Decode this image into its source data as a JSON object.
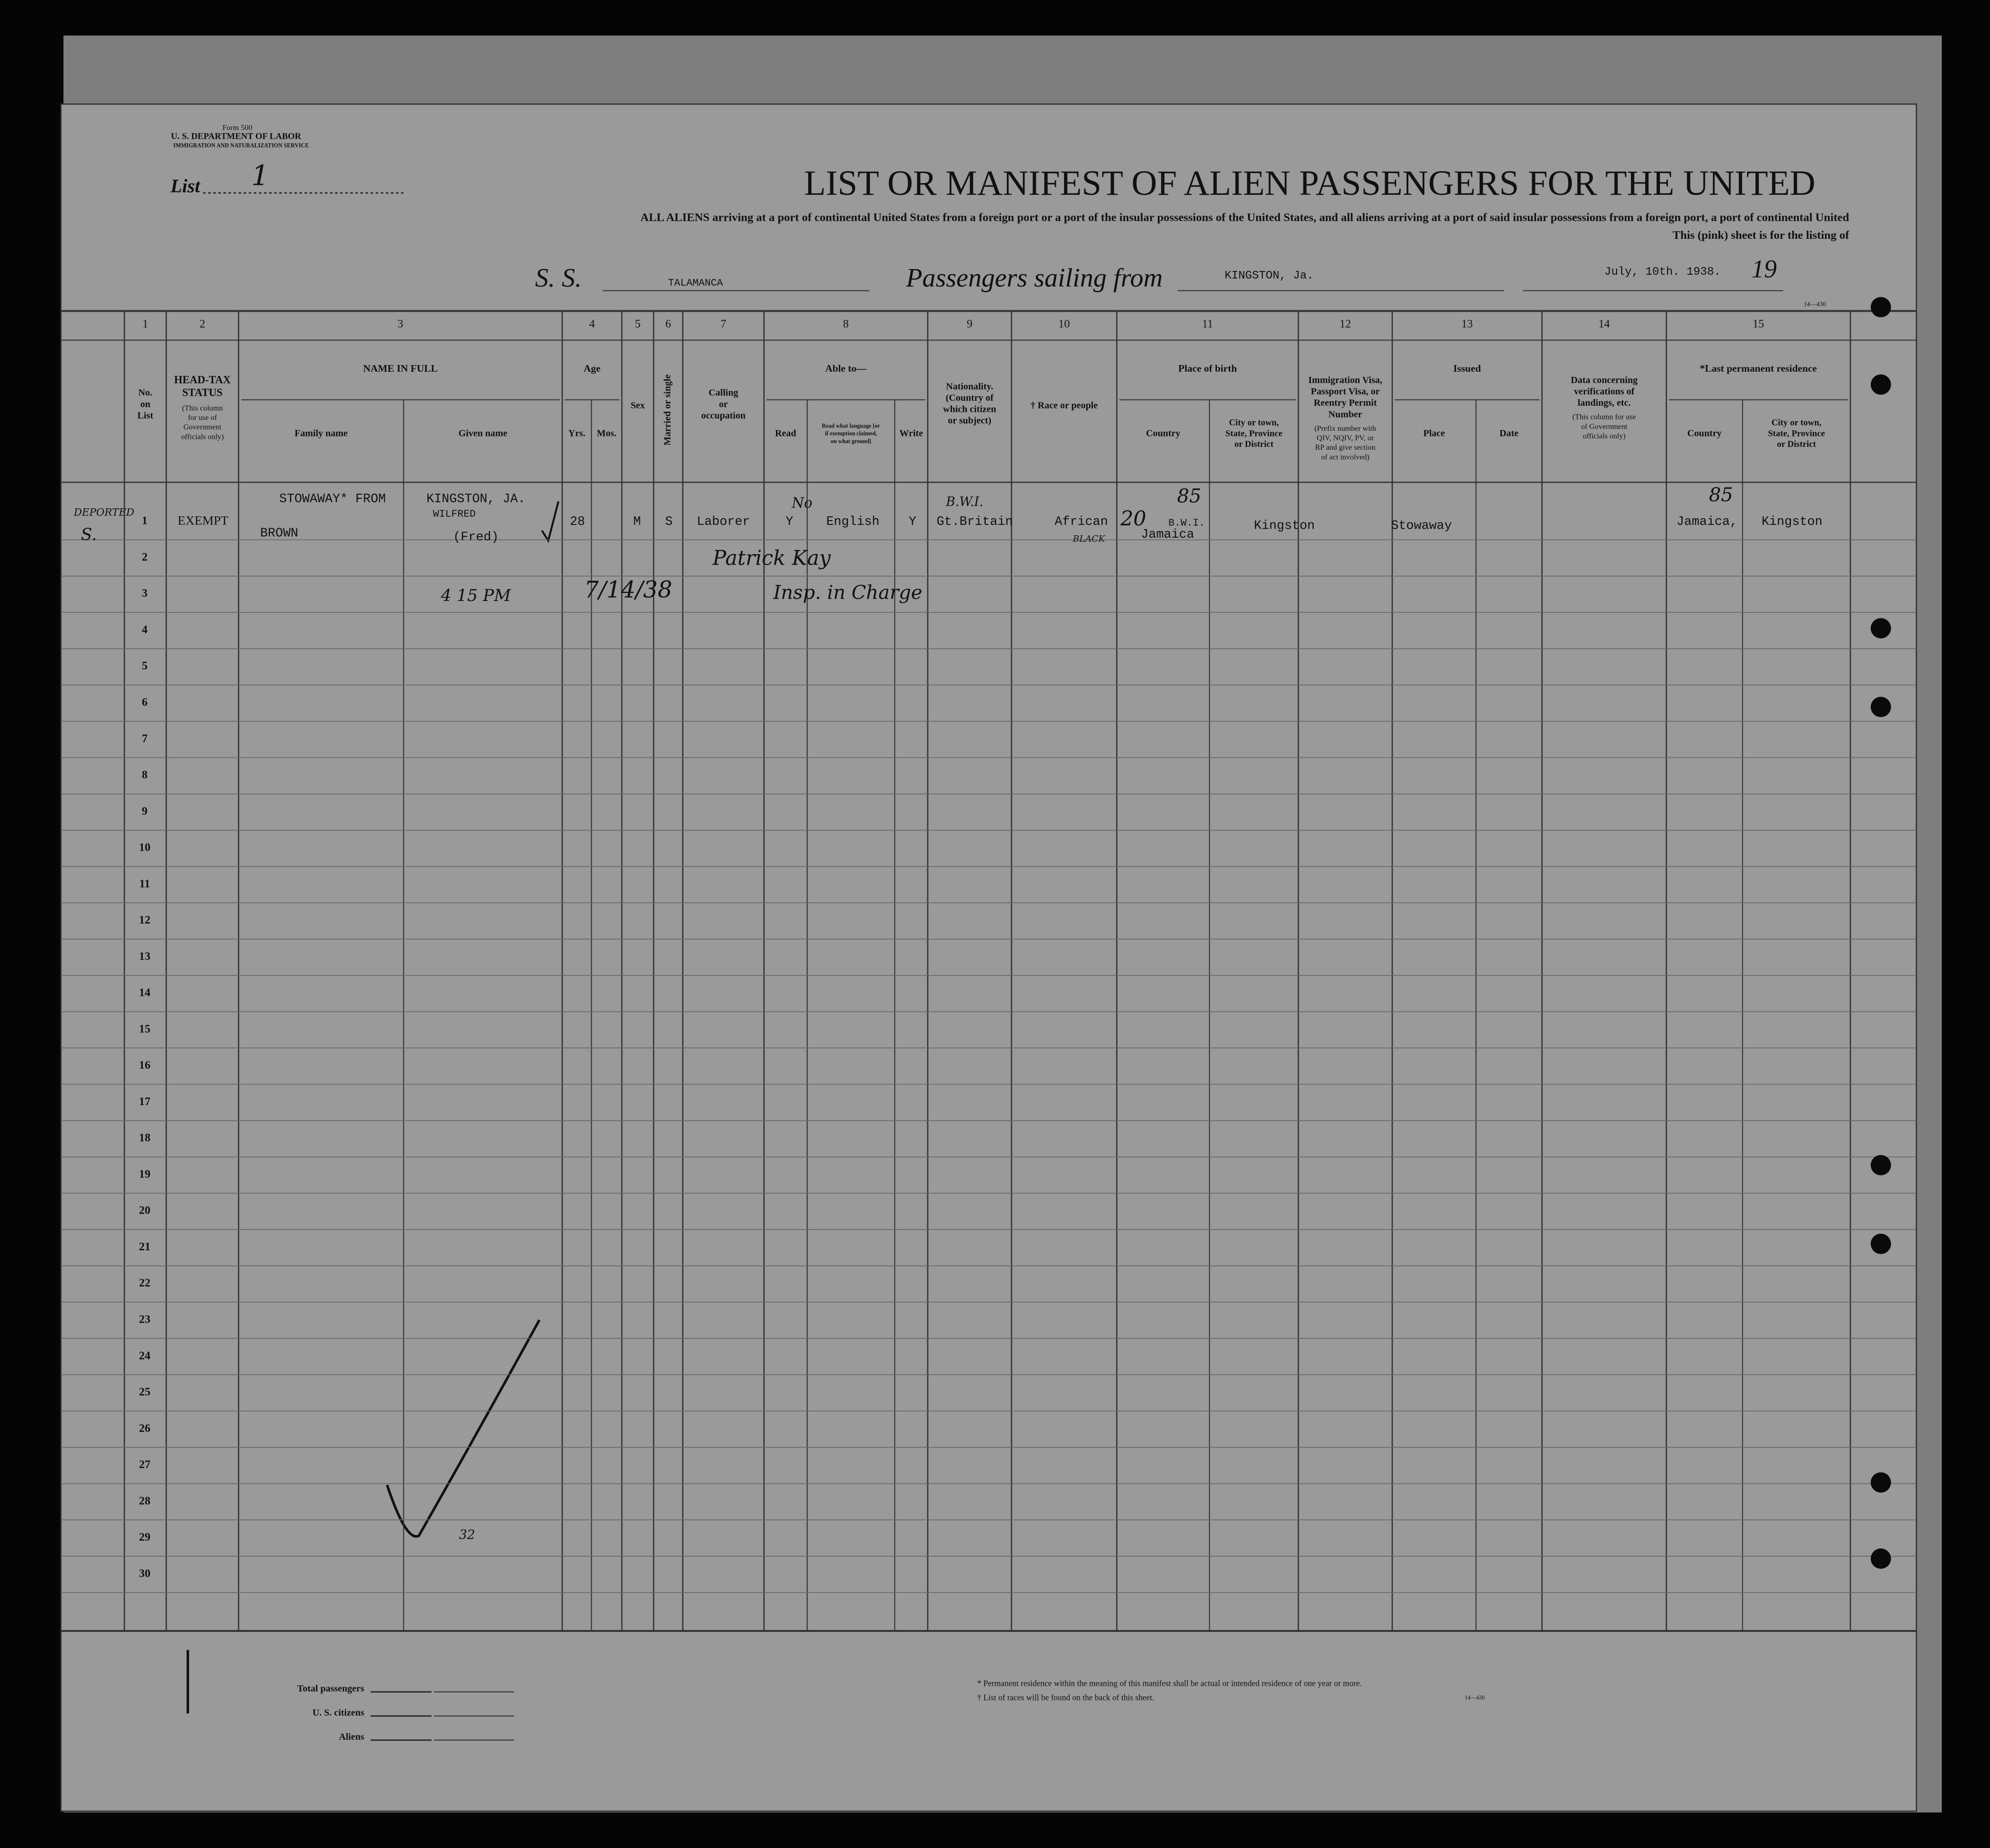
{
  "header": {
    "form": "Form 500",
    "department": "U. S. DEPARTMENT OF LABOR",
    "service": "IMMIGRATION AND NATURALIZATION SERVICE",
    "list_label": "List",
    "list_number": "1",
    "title": "LIST OR MANIFEST OF ALIEN PASSENGERS FOR THE UNITED",
    "subtitle_1": "ALL ALIENS arriving at a port of continental United States from a foreign port or a port of the insular possessions of the United States, and all aliens arriving at a port of said insular possessions from a foreign port, a port of continental United",
    "subtitle_2": "This (pink) sheet is for the listing of",
    "ss_label": "S. S.",
    "ship": "TALAMANCA",
    "sailing_label": "Passengers sailing from",
    "port": "KINGSTON, Ja.",
    "date": "July, 10th. 1938.",
    "year_prefix": "19",
    "form_code": "14—430"
  },
  "columns": [
    {
      "number": 1,
      "label": [
        "No.",
        "on",
        "List"
      ]
    },
    {
      "number": 2,
      "label": [
        "HEAD-TAX",
        "STATUS"
      ],
      "note": [
        "(This column",
        "for use of",
        "Government",
        "officials only)"
      ]
    },
    {
      "number": 3,
      "label": [
        "NAME IN FULL"
      ],
      "sub": [
        [
          "Family name"
        ],
        [
          "Given name"
        ]
      ]
    },
    {
      "number": 4,
      "label": [
        "Age"
      ],
      "sub": [
        [
          "Yrs."
        ],
        [
          "Mos."
        ]
      ]
    },
    {
      "number": 5,
      "label": [
        "Sex"
      ]
    },
    {
      "number": 6,
      "label": [
        "Married or single"
      ]
    },
    {
      "number": 7,
      "label": [
        "Calling",
        "or",
        "occupation"
      ]
    },
    {
      "number": 8,
      "label": [
        "Able to—"
      ],
      "sub": [
        [
          "Read"
        ],
        [
          "Read what language [or",
          "if exemption claimed,",
          "on what ground]"
        ],
        [
          "Write"
        ]
      ]
    },
    {
      "number": 9,
      "label": [
        "Nationality.",
        "(Country of",
        "which citizen",
        "or subject)"
      ]
    },
    {
      "number": 10,
      "label": [
        "† Race or people"
      ]
    },
    {
      "number": 11,
      "label": [
        "Place of birth"
      ],
      "sub": [
        [
          "Country"
        ],
        [
          "City or town,",
          "State, Province",
          "or District"
        ]
      ]
    },
    {
      "number": 12,
      "label": [
        "Immigration Visa,",
        "Passport Visa, or",
        "Reentry Permit",
        "Number"
      ],
      "note": [
        "(Prefix number with",
        "QIV, NQIV, PV, or",
        "RP and give section",
        "of act involved)"
      ]
    },
    {
      "number": 13,
      "label": [
        "Issued"
      ],
      "sub": [
        [
          "Place"
        ],
        [
          "Date"
        ]
      ]
    },
    {
      "number": 14,
      "label": [
        "Data concerning",
        "verifications of",
        "landings, etc."
      ],
      "note": [
        "(This column for use",
        "of Government",
        "officials only)"
      ]
    },
    {
      "number": 15,
      "label": [
        "*Last permanent residence"
      ],
      "sub": [
        [
          "Country"
        ],
        [
          "City or town,",
          "State, Province",
          "or District"
        ]
      ]
    }
  ],
  "row_numbers": [
    1,
    2,
    3,
    4,
    5,
    6,
    7,
    8,
    9,
    10,
    11,
    12,
    13,
    14,
    15,
    16,
    17,
    18,
    19,
    20,
    21,
    22,
    23,
    24,
    25,
    26,
    27,
    28,
    29,
    30
  ],
  "entries": [
    "DEPORTED",
    "S.",
    "EXEMPT",
    "STOWAWAY* FROM",
    "KINGSTON, JA.",
    "BROWN",
    "WILFRED",
    "(Fred)",
    "28",
    "M",
    "S",
    "Laborer",
    "No",
    "Y",
    "English",
    "Y",
    "B.W.I.",
    "Gt.Britain",
    "African",
    "BLACK",
    "20",
    "B.W.I.",
    "Jamaica",
    "85",
    "Kingston",
    "Stowaway",
    "85",
    "Jamaica,",
    "Kingston",
    "4 15 PM",
    "7/14/38",
    "Patrick Kay",
    "Insp. in Charge",
    "32"
  ],
  "footer": {
    "totals": [
      "Total passengers",
      "U. S. citizens",
      "Aliens"
    ],
    "note_1": "* Permanent residence within the meaning of this manifest shall be actual or intended residence of one year or more.",
    "note_2": "† List of races will be found on the back of this sheet.",
    "code": "14—430"
  }
}
